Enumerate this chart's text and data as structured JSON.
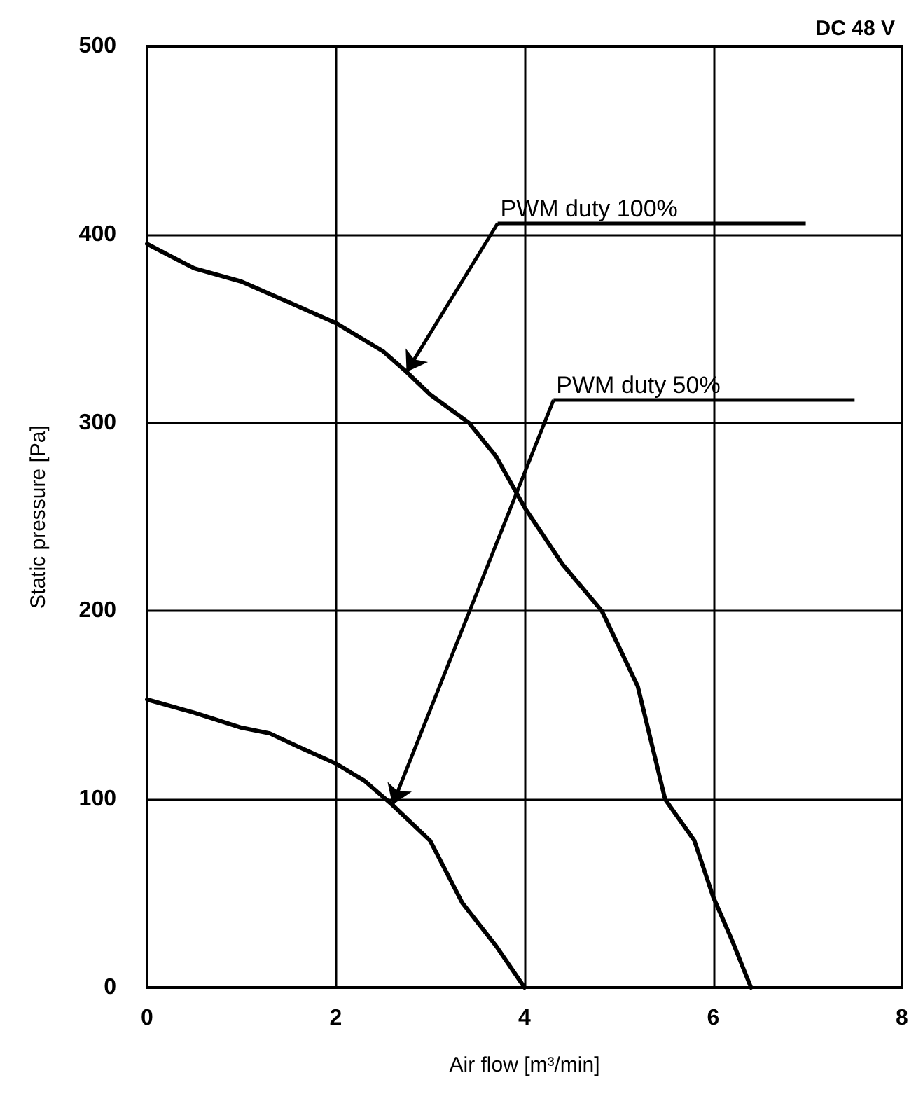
{
  "chart_data": {
    "type": "line",
    "title": "DC 48 V",
    "xlabel": "Air flow [m³/min]",
    "ylabel": "Static pressure [Pa]",
    "xlim": [
      0,
      8
    ],
    "xticks": [
      0,
      2,
      4,
      6,
      8
    ],
    "ylim": [
      0,
      500
    ],
    "yticks": [
      0,
      100,
      200,
      300,
      400,
      500
    ],
    "grid": true,
    "marker": "none",
    "line_style": "solid",
    "series": [
      {
        "color": "#000000",
        "x": [
          0,
          0.5,
          1,
          1.5,
          2,
          2.5,
          2.75,
          3,
          3.41,
          3.7,
          4,
          4.4,
          4.82,
          5.2,
          5.49,
          5.8,
          6,
          6.2,
          6.4
        ],
        "values": [
          395,
          382,
          375,
          364,
          353,
          338,
          327,
          315,
          300,
          282,
          255,
          225,
          200,
          160,
          100,
          78,
          48,
          25,
          0
        ]
      },
      {
        "color": "#000000",
        "x": [
          0,
          0.5,
          1,
          1.3,
          1.6,
          2,
          2.3,
          2.6,
          3,
          3.34,
          3.7,
          4
        ],
        "values": [
          153,
          146,
          138,
          135,
          128,
          119,
          110,
          97,
          78,
          45,
          22,
          0
        ]
      }
    ],
    "annotations": [
      {
        "text": "PWM duty 100%",
        "x": 2.75,
        "y": 327
      },
      {
        "text": "PWM duty 50%",
        "x": 2.6,
        "y": 97
      }
    ]
  }
}
